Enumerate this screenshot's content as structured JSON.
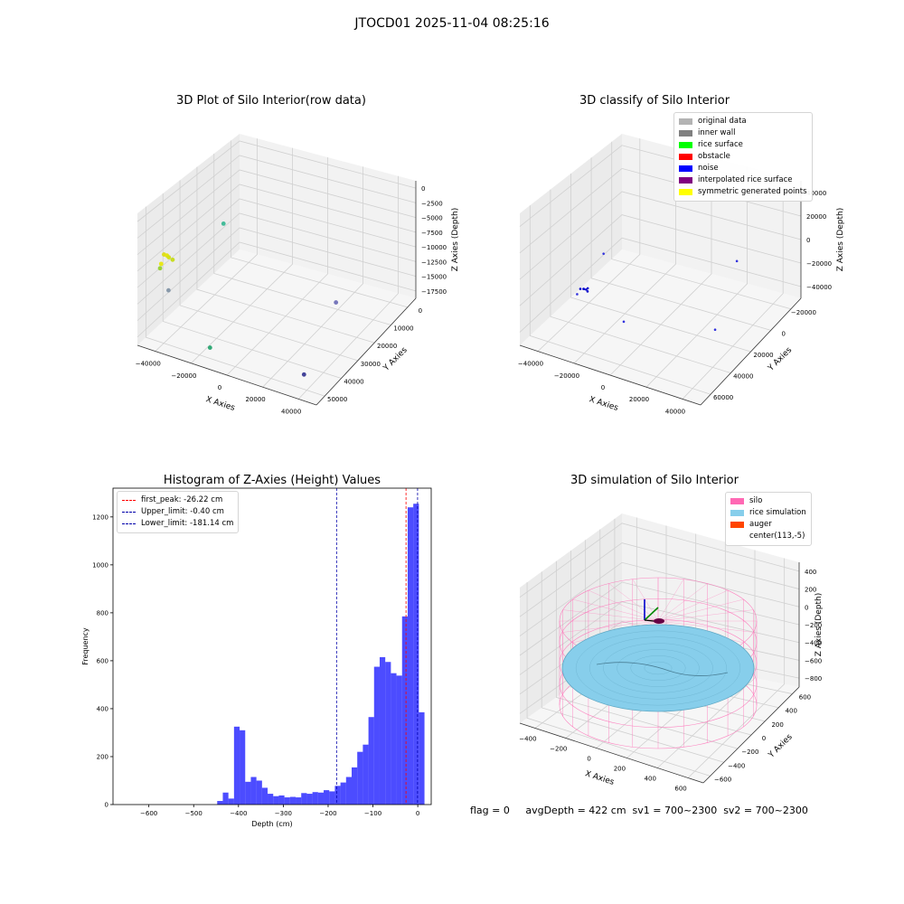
{
  "figure": {
    "suptitle": "JTOCD01 2025-11-04 08:25:16",
    "summary_text": "flag = 0     avgDepth = 422 cm  sv1 = 700~2300  sv2 = 700~2300"
  },
  "chart_data": [
    {
      "type": "scatter3d",
      "title": "3D Plot of Silo Interior(row data)",
      "xlabel": "X Axies",
      "ylabel": "Y Axies",
      "zlabel": "Z Axies (Depth)",
      "x_ticks": [
        "−40000",
        "−20000",
        "0",
        "20000",
        "40000"
      ],
      "y_ticks": [
        "0",
        "10000",
        "20000",
        "30000",
        "40000",
        "50000"
      ],
      "z_ticks": [
        "0",
        "−2500",
        "−5000",
        "−7500",
        "−10000",
        "−12500",
        "−15000",
        "−17500"
      ],
      "xlim": [
        -45000,
        45000
      ],
      "ylim": [
        -2000,
        55000
      ],
      "zlim": [
        -18500,
        1000
      ],
      "grid": true,
      "points": [
        {
          "x": -36000,
          "y": 3000,
          "z": -4000,
          "color": "#dddd22"
        },
        {
          "x": -35000,
          "y": 3500,
          "z": -4200,
          "color": "#e5e510"
        },
        {
          "x": -34500,
          "y": 4000,
          "z": -4600,
          "color": "#d4e01a"
        },
        {
          "x": -33000,
          "y": 4500,
          "z": -5000,
          "color": "#c8dc22"
        },
        {
          "x": -37000,
          "y": 2500,
          "z": -5500,
          "color": "#e8e81a"
        },
        {
          "x": -38000,
          "y": 3000,
          "z": -6500,
          "color": "#9ad23a"
        },
        {
          "x": -35500,
          "y": 5000,
          "z": -10500,
          "color": "#8899aa"
        },
        {
          "x": -21000,
          "y": 20000,
          "z": -2500,
          "color": "#44bb99"
        },
        {
          "x": -12000,
          "y": 2000,
          "z": -16500,
          "color": "#33aa77"
        },
        {
          "x": 18000,
          "y": 40000,
          "z": -17500,
          "color": "#7777bb"
        },
        {
          "x": 30000,
          "y": 8000,
          "z": -18200,
          "color": "#444499"
        }
      ]
    },
    {
      "type": "scatter3d",
      "title": "3D classify of Silo Interior",
      "xlabel": "X Axies",
      "ylabel": "Y Axies",
      "zlabel": "Z Axies (Depth)",
      "x_ticks": [
        "−40000",
        "−20000",
        "0",
        "20000",
        "40000"
      ],
      "y_ticks": [
        "−20000",
        "0",
        "20000",
        "40000",
        "60000"
      ],
      "z_ticks": [
        "40000",
        "20000",
        "0",
        "−20000",
        "−40000"
      ],
      "xlim": [
        -45000,
        45000
      ],
      "ylim": [
        -22000,
        62000
      ],
      "zlim": [
        -50000,
        50000
      ],
      "grid": true,
      "legend_position": "top-right",
      "legend": [
        {
          "label": "original data",
          "color": "#b3b3b3"
        },
        {
          "label": "inner wall",
          "color": "#808080"
        },
        {
          "label": "rice surface",
          "color": "#00ff00"
        },
        {
          "label": "obstacle",
          "color": "#ff0000"
        },
        {
          "label": "noise",
          "color": "#0000ff"
        },
        {
          "label": "interpolated rice surface",
          "color": "#800080"
        },
        {
          "label": "symmetric generated points",
          "color": "#ffff00"
        }
      ],
      "points": [
        {
          "x": -22000,
          "y": -10000,
          "z": -2000,
          "color": "#0000cc"
        },
        {
          "x": -21000,
          "y": -9000,
          "z": -2500,
          "color": "#0000cc"
        },
        {
          "x": -20000,
          "y": -8500,
          "z": -3000,
          "color": "#0000cc"
        },
        {
          "x": -20500,
          "y": -9500,
          "z": -1800,
          "color": "#0000cc"
        },
        {
          "x": -19500,
          "y": -8000,
          "z": -2200,
          "color": "#0000cc"
        },
        {
          "x": -19000,
          "y": -9000,
          "z": -3500,
          "color": "#0000cc"
        },
        {
          "x": -23000,
          "y": -11000,
          "z": -6000,
          "color": "#3333dd"
        },
        {
          "x": -14000,
          "y": -4000,
          "z": 26000,
          "color": "#3333dd"
        },
        {
          "x": 2000,
          "y": -14000,
          "z": -12000,
          "color": "#3333dd"
        },
        {
          "x": 25000,
          "y": 42000,
          "z": -8000,
          "color": "#3333dd"
        },
        {
          "x": 32000,
          "y": 12000,
          "z": -30000,
          "color": "#3333dd"
        }
      ]
    },
    {
      "type": "bar",
      "title": "Histogram of Z-Axies (Height) Values",
      "xlabel": "Depth (cm)",
      "ylabel": "Frequency",
      "xlim": [
        -680,
        30
      ],
      "ylim": [
        0,
        1320
      ],
      "x_ticks": [
        -600,
        -500,
        -400,
        -300,
        -200,
        -100,
        0
      ],
      "x_tick_labels": [
        "−600",
        "−500",
        "−400",
        "−300",
        "−200",
        "−100",
        "0"
      ],
      "y_ticks": [
        0,
        200,
        400,
        600,
        800,
        1000,
        1200
      ],
      "bin_width": 12.5,
      "bin_start": -660,
      "bar_color": "#0000ff",
      "values": [
        0,
        0,
        0,
        0,
        0,
        0,
        0,
        0,
        0,
        0,
        0,
        0,
        0,
        0,
        0,
        0,
        0,
        15,
        50,
        25,
        325,
        310,
        95,
        115,
        100,
        70,
        45,
        35,
        38,
        30,
        32,
        30,
        48,
        45,
        52,
        50,
        60,
        55,
        78,
        92,
        115,
        155,
        220,
        250,
        365,
        575,
        615,
        595,
        548,
        538,
        785,
        1240,
        1255,
        385
      ],
      "legend_position": "top-left",
      "legend": [
        {
          "label": "first_peak: -26.22 cm",
          "color": "#ff0000"
        },
        {
          "label": "Upper_limit: -0.40 cm",
          "color": "#0000aa"
        },
        {
          "label": "Lower_limit: -181.14 cm",
          "color": "#0000aa"
        }
      ],
      "vlines": [
        {
          "x": -26.22,
          "color": "#ff0000"
        },
        {
          "x": -0.4,
          "color": "#0000aa"
        },
        {
          "x": -181.14,
          "color": "#0000aa"
        }
      ]
    },
    {
      "type": "surface3d",
      "title": "3D simulation of Silo Interior",
      "xlabel": "X Axies",
      "ylabel": "Y Axies",
      "zlabel": "Z Axies (Depth)",
      "x_ticks": [
        "−400",
        "−200",
        "0",
        "200",
        "400",
        "600"
      ],
      "y_ticks": [
        "−600",
        "−400",
        "−200",
        "0",
        "200",
        "400",
        "600"
      ],
      "z_ticks": [
        "400",
        "200",
        "0",
        "−200",
        "−400",
        "−600",
        "−800"
      ],
      "xlim": [
        -500,
        700
      ],
      "ylim": [
        -700,
        700
      ],
      "zlim": [
        -900,
        500
      ],
      "grid": true,
      "legend_position": "top-right",
      "legend": [
        {
          "label": "silo",
          "color": "#ff69b4"
        },
        {
          "label": "rice simulation",
          "color": "#87ceeb"
        },
        {
          "label": "auger",
          "color": "#ff4500"
        },
        {
          "label": "center(113,-5)",
          "color": ""
        }
      ],
      "silo_color": "#ff69b4",
      "rice_color": "#87ceeb"
    }
  ]
}
